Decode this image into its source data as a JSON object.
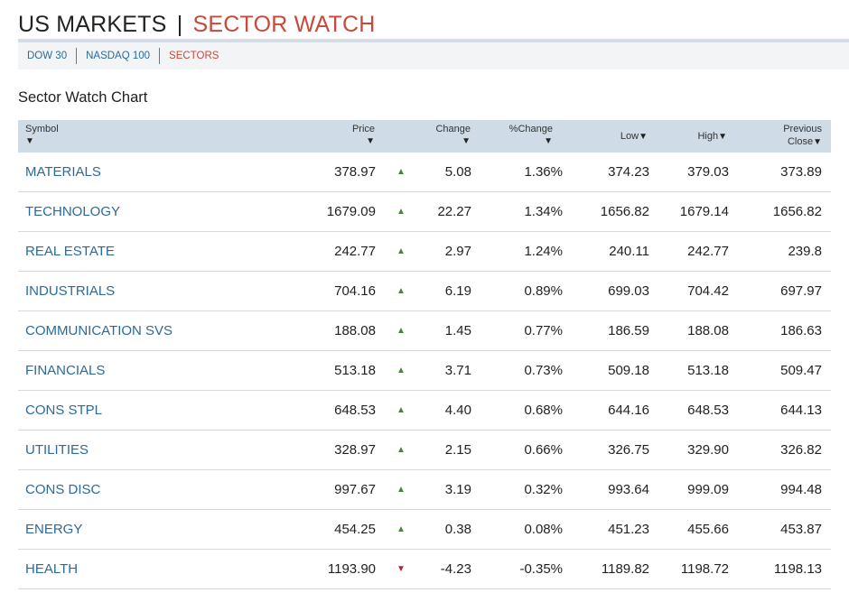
{
  "header": {
    "title_main": "US MARKETS",
    "title_sep": "|",
    "title_accent": "SECTOR WATCH"
  },
  "subnav": {
    "items": [
      {
        "label": "DOW 30",
        "active": false
      },
      {
        "label": "NASDAQ 100",
        "active": false
      },
      {
        "label": "SECTORS",
        "active": true
      }
    ]
  },
  "section_title": "Sector Watch Chart",
  "columns": {
    "symbol": "Symbol",
    "price": "Price",
    "change": "Change",
    "pct_change": "%Change",
    "low": "Low",
    "high": "High",
    "previous": "Previous",
    "close": "Close",
    "sort_arrow": "▼"
  },
  "colors": {
    "accent_red": "#c8483a",
    "link_blue": "#2b6a9a",
    "up_green": "#3f8b33",
    "down_red": "#b8252d",
    "header_bg": "#cfdbe6"
  },
  "rows": [
    {
      "symbol": "MATERIALS",
      "price": "378.97",
      "direction": "up",
      "indicator": "▲",
      "change": "5.08",
      "pct": "1.36%",
      "low": "374.23",
      "high": "379.03",
      "prev": "373.89"
    },
    {
      "symbol": "TECHNOLOGY",
      "price": "1679.09",
      "direction": "up",
      "indicator": "▲",
      "change": "22.27",
      "pct": "1.34%",
      "low": "1656.82",
      "high": "1679.14",
      "prev": "1656.82"
    },
    {
      "symbol": "REAL ESTATE",
      "price": "242.77",
      "direction": "up",
      "indicator": "▲",
      "change": "2.97",
      "pct": "1.24%",
      "low": "240.11",
      "high": "242.77",
      "prev": "239.8"
    },
    {
      "symbol": "INDUSTRIALS",
      "price": "704.16",
      "direction": "up",
      "indicator": "▲",
      "change": "6.19",
      "pct": "0.89%",
      "low": "699.03",
      "high": "704.42",
      "prev": "697.97"
    },
    {
      "symbol": "COMMUNICATION SVS",
      "price": "188.08",
      "direction": "up",
      "indicator": "▲",
      "change": "1.45",
      "pct": "0.77%",
      "low": "186.59",
      "high": "188.08",
      "prev": "186.63"
    },
    {
      "symbol": "FINANCIALS",
      "price": "513.18",
      "direction": "up",
      "indicator": "▲",
      "change": "3.71",
      "pct": "0.73%",
      "low": "509.18",
      "high": "513.18",
      "prev": "509.47"
    },
    {
      "symbol": "CONS STPL",
      "price": "648.53",
      "direction": "up",
      "indicator": "▲",
      "change": "4.40",
      "pct": "0.68%",
      "low": "644.16",
      "high": "648.53",
      "prev": "644.13"
    },
    {
      "symbol": "UTILITIES",
      "price": "328.97",
      "direction": "up",
      "indicator": "▲",
      "change": "2.15",
      "pct": "0.66%",
      "low": "326.75",
      "high": "329.90",
      "prev": "326.82"
    },
    {
      "symbol": "CONS DISC",
      "price": "997.67",
      "direction": "up",
      "indicator": "▲",
      "change": "3.19",
      "pct": "0.32%",
      "low": "993.64",
      "high": "999.09",
      "prev": "994.48"
    },
    {
      "symbol": "ENERGY",
      "price": "454.25",
      "direction": "up",
      "indicator": "▲",
      "change": "0.38",
      "pct": "0.08%",
      "low": "451.23",
      "high": "455.66",
      "prev": "453.87"
    },
    {
      "symbol": "HEALTH",
      "price": "1193.90",
      "direction": "down",
      "indicator": "▼",
      "change": "-4.23",
      "pct": "-0.35%",
      "low": "1189.82",
      "high": "1198.72",
      "prev": "1198.13"
    }
  ]
}
